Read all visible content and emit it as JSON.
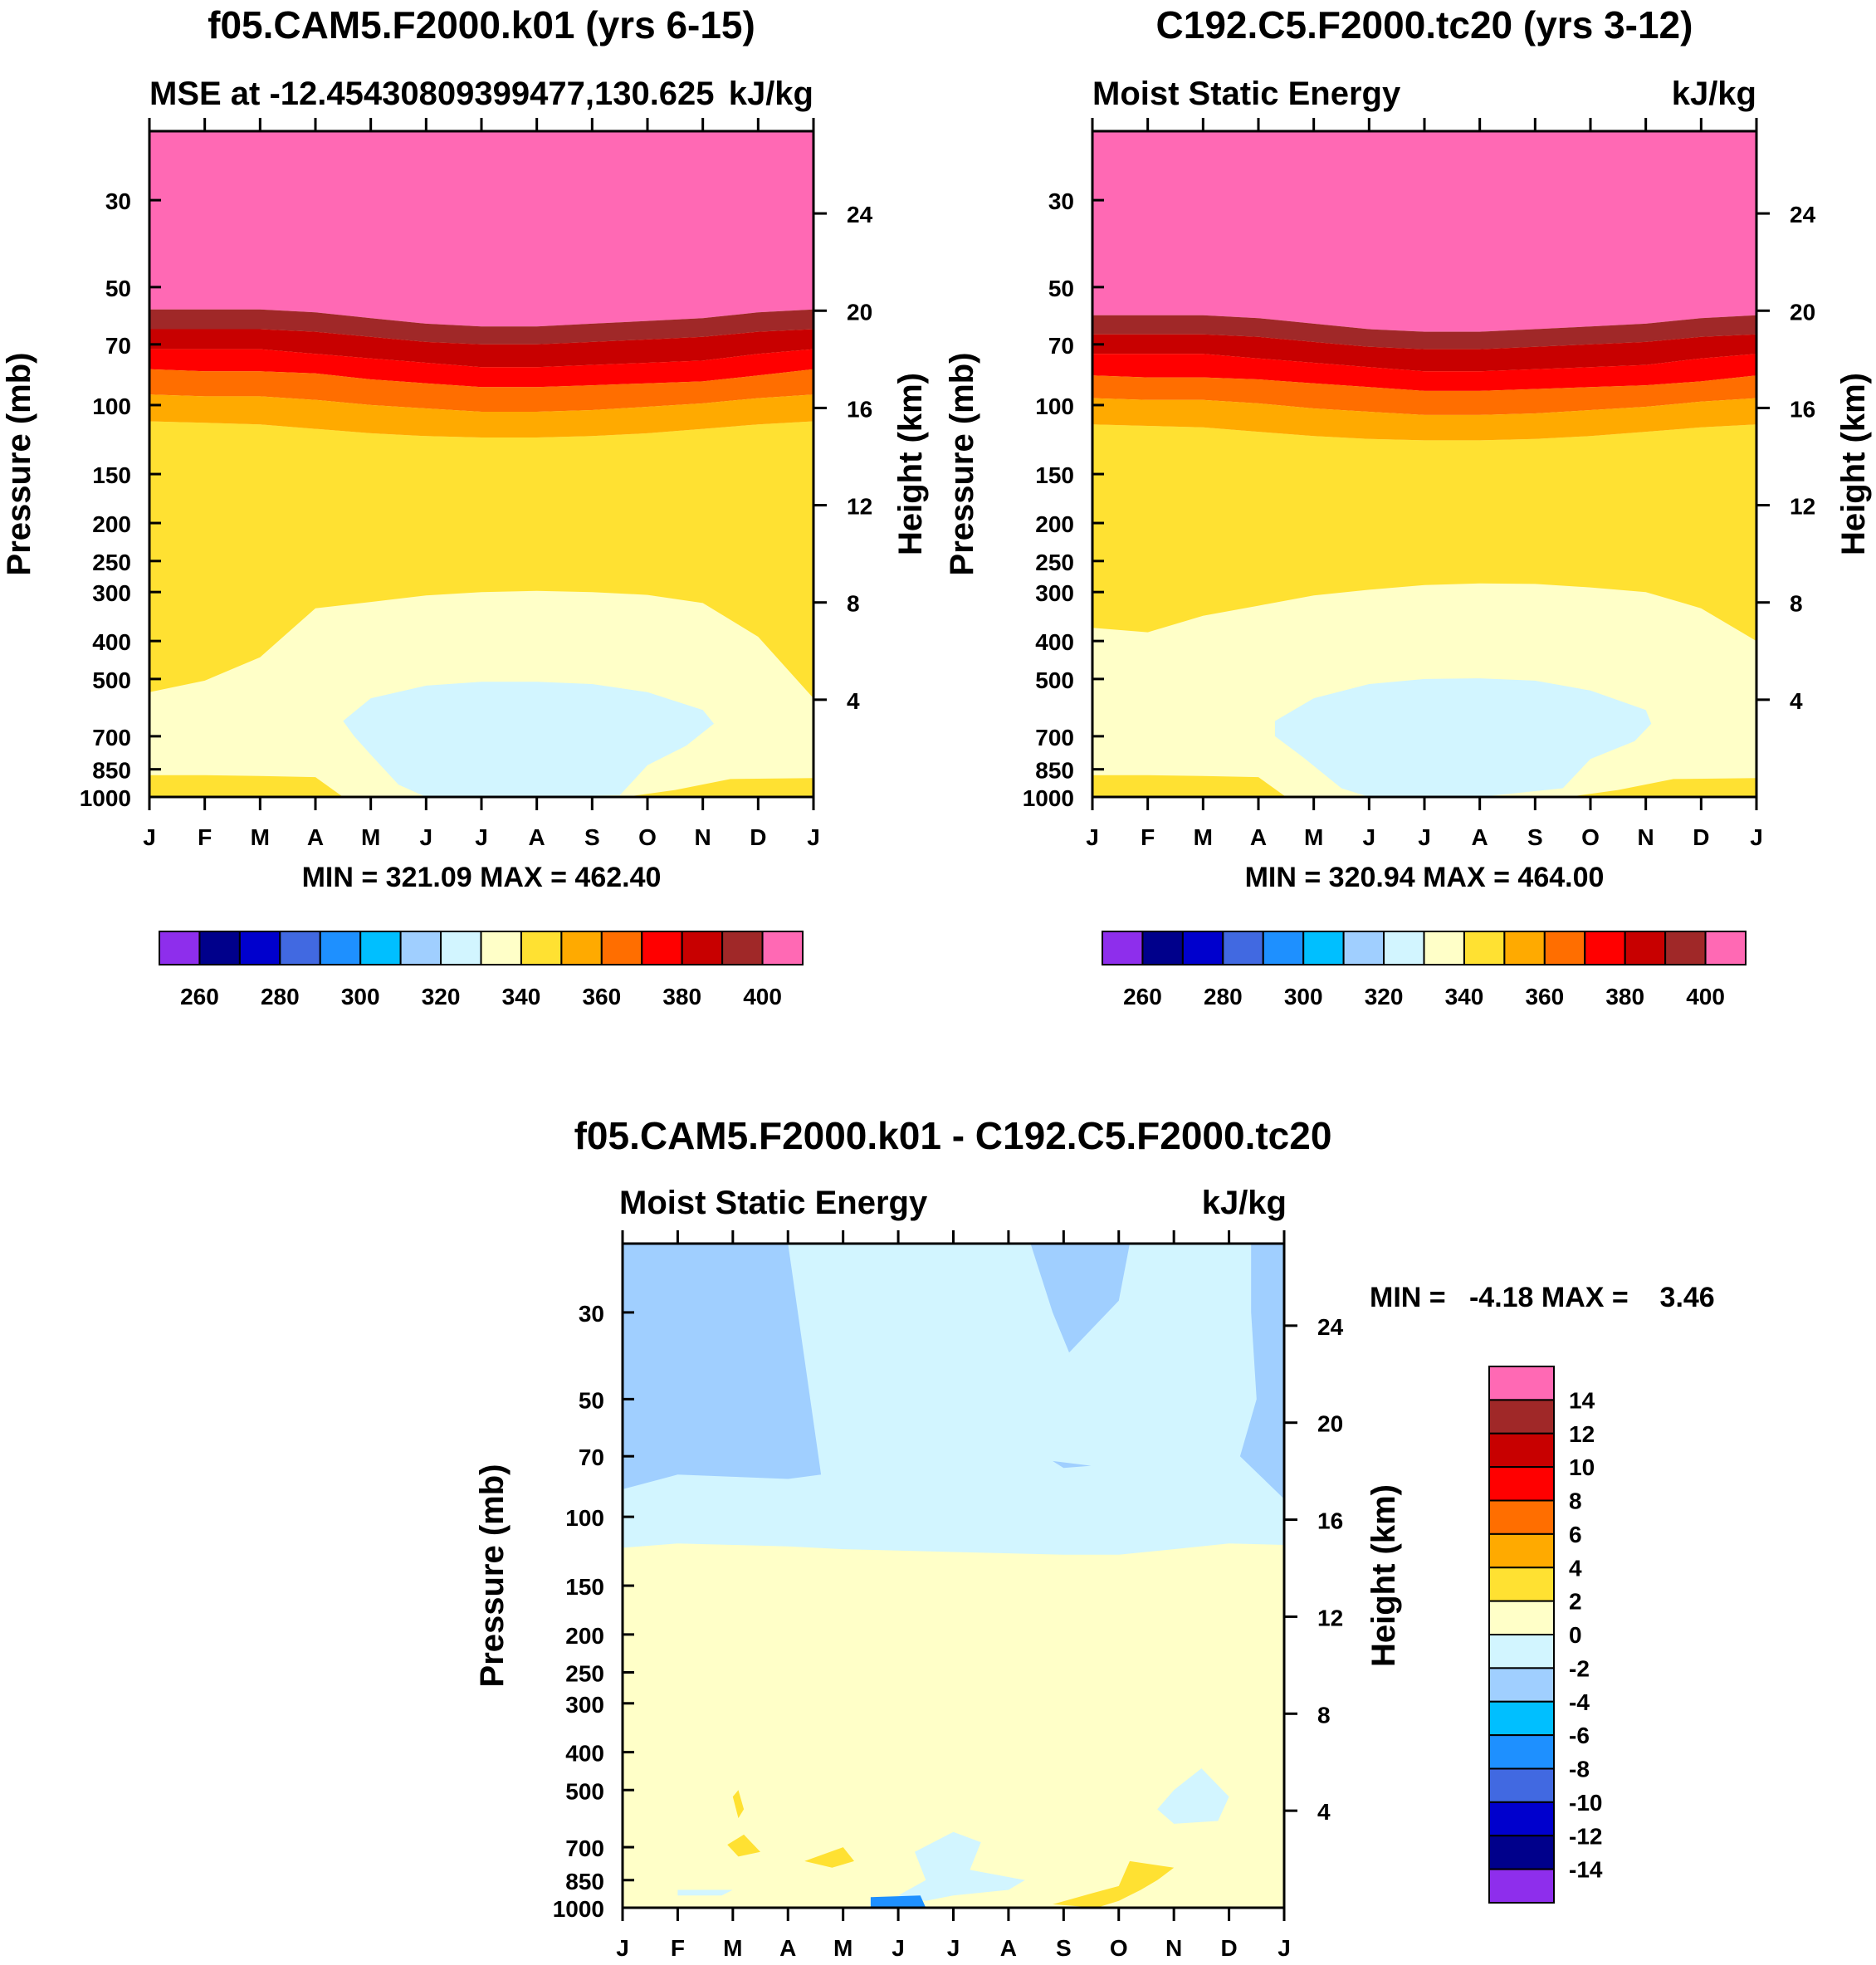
{
  "figure": {
    "panels": [
      {
        "title": "f05.CAM5.F2000.k01 (yrs 6-15)",
        "left_string": "MSE at -12.45430809399477,130.625",
        "right_string": "kJ/kg",
        "ylabel_left": "Pressure (mb)",
        "ylabel_right": "Height (km)",
        "stats": "MIN = 321.09 MAX = 462.40"
      },
      {
        "title": "C192.C5.F2000.tc20 (yrs 3-12)",
        "left_string": "Moist Static Energy",
        "right_string": "kJ/kg",
        "ylabel_left": "Pressure (mb)",
        "ylabel_right": "Height (km)",
        "stats": "MIN = 320.94 MAX = 464.00"
      },
      {
        "title": "f05.CAM5.F2000.k01 - C192.C5.F2000.tc20",
        "left_string": "Moist Static Energy",
        "right_string": "kJ/kg",
        "ylabel_left": "Pressure (mb)",
        "ylabel_right": "Height (km)",
        "stats": "MIN =   -4.18 MAX =    3.46"
      }
    ]
  },
  "chart_data": [
    {
      "type": "heatmap",
      "subtype": "filled-contour month-pressure cross section",
      "title": "f05.CAM5.F2000.k01 (yrs 6-15)",
      "subtitle": "MSE at -12.45430809399477,130.625",
      "units": "kJ/kg",
      "xlabel": "",
      "ylabel": "Pressure (mb)",
      "y2label": "Height (km)",
      "x_categories": [
        "J",
        "F",
        "M",
        "A",
        "M",
        "J",
        "J",
        "A",
        "S",
        "O",
        "N",
        "D",
        "J"
      ],
      "y_ticks": [
        30,
        50,
        70,
        100,
        150,
        200,
        250,
        300,
        400,
        500,
        700,
        850,
        1000
      ],
      "y_range": [
        1000,
        20
      ],
      "y2_ticks": [
        4,
        8,
        12,
        16,
        20,
        24
      ],
      "min": 321.09,
      "max": 462.4,
      "colorbar": {
        "orientation": "horizontal",
        "levels": [
          260,
          280,
          300,
          320,
          340,
          360,
          380,
          400
        ],
        "interval": 10
      },
      "top_layer_pressure_profile": {
        "boundary_levels": [
          400,
          390,
          380,
          370,
          360,
          350,
          340,
          330
        ],
        "x": [
          0,
          1,
          2,
          3,
          4,
          5,
          6,
          7,
          8,
          9,
          10,
          11,
          12
        ],
        "pressure": [
          [
            57,
            57,
            57,
            58,
            60,
            62,
            63,
            63,
            62,
            61,
            60,
            58,
            57
          ],
          [
            64,
            64,
            64,
            65,
            67,
            69,
            70,
            70,
            69,
            68,
            67,
            65,
            64
          ],
          [
            72,
            72,
            72,
            74,
            76,
            78,
            80,
            80,
            79,
            78,
            77,
            74,
            72
          ],
          [
            81,
            82,
            82,
            83,
            86,
            88,
            90,
            90,
            89,
            88,
            87,
            84,
            81
          ],
          [
            94,
            95,
            95,
            97,
            100,
            102,
            104,
            104,
            103,
            101,
            99,
            96,
            94
          ],
          [
            110,
            111,
            112,
            115,
            118,
            120,
            121,
            121,
            120,
            118,
            115,
            112,
            110
          ]
        ]
      }
    },
    {
      "type": "heatmap",
      "subtype": "filled-contour month-pressure cross section",
      "title": "C192.C5.F2000.tc20 (yrs 3-12)",
      "subtitle": "Moist Static Energy",
      "units": "kJ/kg",
      "xlabel": "",
      "ylabel": "Pressure (mb)",
      "y2label": "Height (km)",
      "x_categories": [
        "J",
        "F",
        "M",
        "A",
        "M",
        "J",
        "J",
        "A",
        "S",
        "O",
        "N",
        "D",
        "J"
      ],
      "y_ticks": [
        30,
        50,
        70,
        100,
        150,
        200,
        250,
        300,
        400,
        500,
        700,
        850,
        1000
      ],
      "y_range": [
        1000,
        20
      ],
      "y2_ticks": [
        4,
        8,
        12,
        16,
        20,
        24
      ],
      "min": 320.94,
      "max": 464.0,
      "colorbar": {
        "orientation": "horizontal",
        "levels": [
          260,
          280,
          300,
          320,
          340,
          360,
          380,
          400
        ],
        "interval": 10
      },
      "top_layer_pressure_profile": {
        "boundary_levels": [
          400,
          390,
          380,
          370,
          360,
          350,
          340,
          330
        ],
        "x": [
          0,
          1,
          2,
          3,
          4,
          5,
          6,
          7,
          8,
          9,
          10,
          11,
          12
        ],
        "pressure": [
          [
            59,
            59,
            59,
            60,
            62,
            64,
            65,
            65,
            64,
            63,
            62,
            60,
            59
          ],
          [
            66,
            66,
            66,
            67,
            69,
            71,
            72,
            72,
            71,
            70,
            69,
            67,
            66
          ],
          [
            74,
            74,
            74,
            76,
            78,
            80,
            82,
            82,
            81,
            80,
            79,
            76,
            74
          ],
          [
            84,
            85,
            85,
            86,
            88,
            90,
            92,
            92,
            91,
            90,
            89,
            87,
            84
          ],
          [
            96,
            97,
            97,
            99,
            102,
            104,
            106,
            106,
            105,
            103,
            101,
            98,
            96
          ],
          [
            112,
            113,
            114,
            117,
            120,
            122,
            123,
            123,
            122,
            120,
            117,
            114,
            112
          ]
        ]
      }
    },
    {
      "type": "heatmap",
      "subtype": "filled-contour month-pressure difference cross section",
      "title": "f05.CAM5.F2000.k01 - C192.C5.F2000.tc20",
      "subtitle": "Moist Static Energy",
      "units": "kJ/kg",
      "xlabel": "",
      "ylabel": "Pressure (mb)",
      "y2label": "Height (km)",
      "x_categories": [
        "J",
        "F",
        "M",
        "A",
        "M",
        "J",
        "J",
        "A",
        "S",
        "O",
        "N",
        "D",
        "J"
      ],
      "y_ticks": [
        30,
        50,
        70,
        100,
        150,
        200,
        250,
        300,
        400,
        500,
        700,
        850,
        1000
      ],
      "y_range": [
        1000,
        20
      ],
      "y2_ticks": [
        4,
        8,
        12,
        16,
        20,
        24
      ],
      "min": -4.18,
      "max": 3.46,
      "colorbar": {
        "orientation": "vertical",
        "levels": [
          14,
          12,
          10,
          8,
          6,
          4,
          2,
          0,
          -2,
          -4,
          -6,
          -8,
          -10,
          -12,
          -14
        ],
        "interval": 2
      }
    }
  ],
  "colors": {
    "scale": [
      "#8e2eec",
      "#00008b",
      "#0000cd",
      "#4169e1",
      "#1e90ff",
      "#00bfff",
      "#a0cfff",
      "#d2f5ff",
      "#ffffc8",
      "#ffe132",
      "#ffaa00",
      "#ff6e00",
      "#ff0000",
      "#c80000",
      "#a02828",
      "#ff69b4"
    ]
  }
}
